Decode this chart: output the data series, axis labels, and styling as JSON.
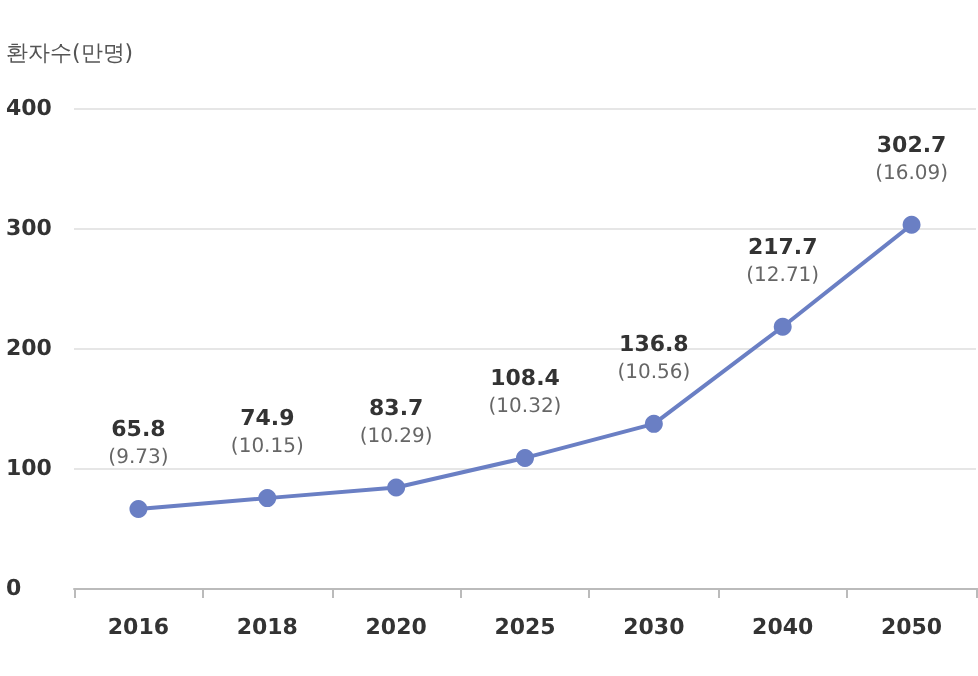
{
  "chart_data": {
    "type": "line",
    "ylabel": "환자수(만명)",
    "categories": [
      "2016",
      "2018",
      "2020",
      "2025",
      "2030",
      "2040",
      "2050"
    ],
    "series": [
      {
        "color": "#6a7fc4",
        "values": [
          65.8,
          74.9,
          83.7,
          108.4,
          136.8,
          217.7,
          302.7
        ],
        "value_labels": [
          "65.8\n(9.73)",
          "74.9\n(10.15)",
          "83.7\n(10.29)",
          "108.4\n(10.32)",
          "136.8\n(10.56)",
          "217.7\n(12.71)",
          "302.7\n(16.09)"
        ]
      }
    ],
    "ylim": [
      0,
      400
    ],
    "yticks": [
      0,
      100,
      200,
      300,
      400
    ],
    "grid": "y",
    "marker": "circle",
    "line_style": "solid"
  }
}
